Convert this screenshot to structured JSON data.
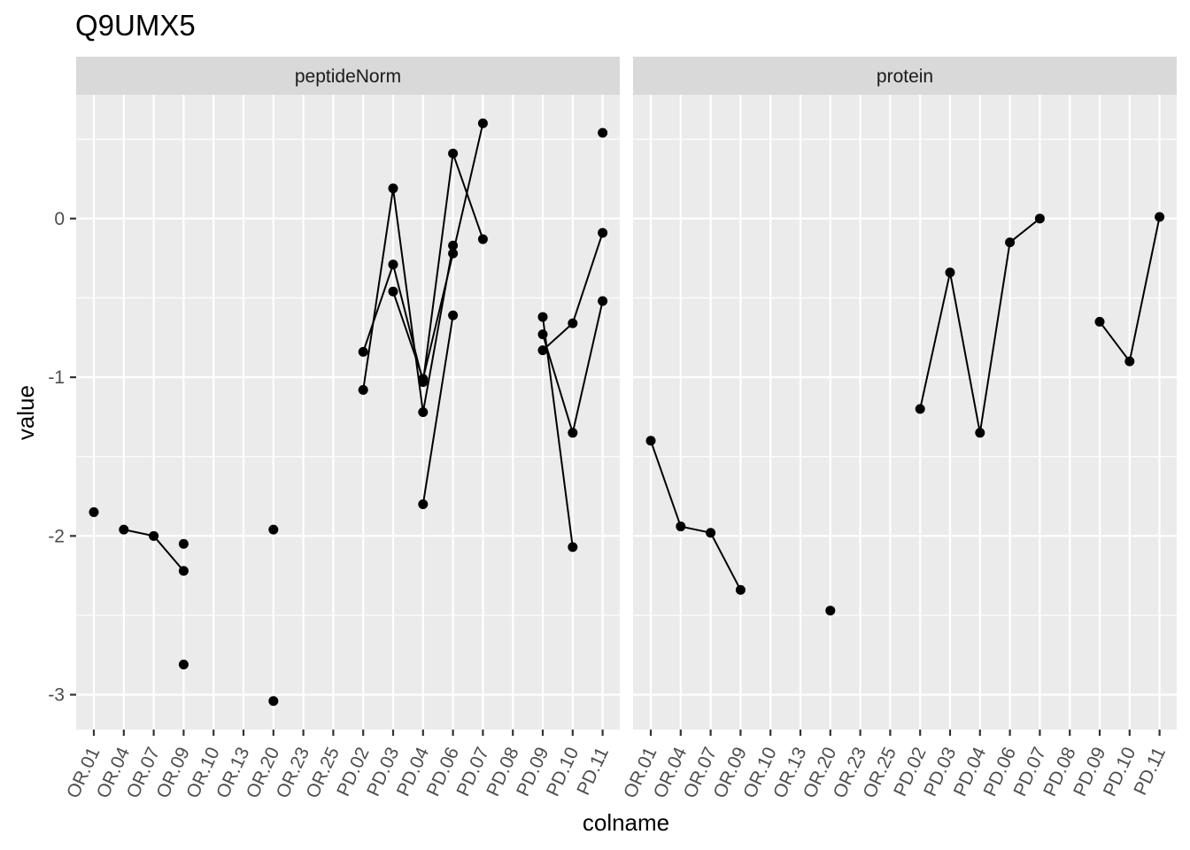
{
  "title": "Q9UMX5",
  "chart_data": {
    "type": "scatter",
    "title": "Q9UMX5",
    "xlabel": "colname",
    "ylabel": "value",
    "categories": [
      "OR.01",
      "OR.04",
      "OR.07",
      "OR.09",
      "OR.10",
      "OR.13",
      "OR.20",
      "OR.23",
      "OR.25",
      "PD.02",
      "PD.03",
      "PD.04",
      "PD.06",
      "PD.07",
      "PD.08",
      "PD.09",
      "PD.10",
      "PD.11"
    ],
    "ylim": [
      -3.22,
      0.78
    ],
    "yticks": [
      -3,
      -2,
      -1,
      0
    ],
    "ytick_labels": [
      "-3",
      "-2",
      "-1",
      "0"
    ],
    "grid": true,
    "panels": [
      {
        "strip": "peptideNorm",
        "lines": [
          [
            [
              "OR.04",
              -1.96
            ],
            [
              "OR.07",
              -2.0
            ],
            [
              "OR.09",
              -2.22
            ]
          ],
          [
            [
              "PD.02",
              -1.08
            ],
            [
              "PD.03",
              0.19
            ],
            [
              "PD.04",
              -1.22
            ],
            [
              "PD.06",
              -0.17
            ]
          ],
          [
            [
              "PD.02",
              -0.84
            ],
            [
              "PD.03",
              -0.29
            ],
            [
              "PD.04",
              -1.03
            ],
            [
              "PD.06",
              0.41
            ],
            [
              "PD.07",
              -0.13
            ]
          ],
          [
            [
              "PD.03",
              -0.46
            ],
            [
              "PD.04",
              -1.01
            ],
            [
              "PD.06",
              -0.22
            ],
            [
              "PD.07",
              0.6
            ]
          ],
          [
            [
              "PD.04",
              -1.8
            ],
            [
              "PD.06",
              -0.61
            ]
          ],
          [
            [
              "PD.09",
              -0.62
            ],
            [
              "PD.10",
              -2.07
            ]
          ],
          [
            [
              "PD.09",
              -0.73
            ],
            [
              "PD.10",
              -1.35
            ],
            [
              "PD.11",
              -0.52
            ]
          ],
          [
            [
              "PD.09",
              -0.83
            ],
            [
              "PD.10",
              -0.66
            ],
            [
              "PD.11",
              -0.09
            ]
          ]
        ],
        "points": [
          [
            "OR.01",
            -1.85
          ],
          [
            "OR.04",
            -1.96
          ],
          [
            "OR.07",
            -2.0
          ],
          [
            "OR.09",
            -2.05
          ],
          [
            "OR.09",
            -2.22
          ],
          [
            "OR.09",
            -2.81
          ],
          [
            "OR.20",
            -1.96
          ],
          [
            "OR.20",
            -3.04
          ],
          [
            "PD.02",
            -1.08
          ],
          [
            "PD.02",
            -0.84
          ],
          [
            "PD.03",
            0.19
          ],
          [
            "PD.03",
            -0.29
          ],
          [
            "PD.03",
            -0.46
          ],
          [
            "PD.04",
            -1.22
          ],
          [
            "PD.04",
            -1.03
          ],
          [
            "PD.04",
            -1.01
          ],
          [
            "PD.04",
            -1.8
          ],
          [
            "PD.06",
            0.41
          ],
          [
            "PD.06",
            -0.17
          ],
          [
            "PD.06",
            -0.22
          ],
          [
            "PD.06",
            -0.61
          ],
          [
            "PD.07",
            0.6
          ],
          [
            "PD.07",
            -0.13
          ],
          [
            "PD.09",
            -0.62
          ],
          [
            "PD.09",
            -0.73
          ],
          [
            "PD.09",
            -0.83
          ],
          [
            "PD.10",
            -0.66
          ],
          [
            "PD.10",
            -1.35
          ],
          [
            "PD.10",
            -2.07
          ],
          [
            "PD.11",
            0.54
          ],
          [
            "PD.11",
            -0.09
          ],
          [
            "PD.11",
            -0.52
          ]
        ]
      },
      {
        "strip": "protein",
        "lines": [
          [
            [
              "OR.01",
              -1.4
            ],
            [
              "OR.04",
              -1.94
            ],
            [
              "OR.07",
              -1.98
            ],
            [
              "OR.09",
              -2.34
            ]
          ],
          [
            [
              "PD.02",
              -1.2
            ],
            [
              "PD.03",
              -0.34
            ],
            [
              "PD.04",
              -1.35
            ],
            [
              "PD.06",
              -0.15
            ],
            [
              "PD.07",
              0.0
            ]
          ],
          [
            [
              "PD.09",
              -0.65
            ],
            [
              "PD.10",
              -0.9
            ],
            [
              "PD.11",
              0.01
            ]
          ]
        ],
        "points": [
          [
            "OR.01",
            -1.4
          ],
          [
            "OR.04",
            -1.94
          ],
          [
            "OR.07",
            -1.98
          ],
          [
            "OR.09",
            -2.34
          ],
          [
            "OR.20",
            -2.47
          ],
          [
            "PD.02",
            -1.2
          ],
          [
            "PD.03",
            -0.34
          ],
          [
            "PD.04",
            -1.35
          ],
          [
            "PD.06",
            -0.15
          ],
          [
            "PD.07",
            0.0
          ],
          [
            "PD.09",
            -0.65
          ],
          [
            "PD.10",
            -0.9
          ],
          [
            "PD.11",
            0.01
          ]
        ]
      }
    ],
    "colors": {
      "panel_bg": "#ebebeb",
      "strip_bg": "#d9d9d9",
      "grid": "#ffffff",
      "mark": "#000000",
      "text": "#4d4d4d",
      "title": "#000000"
    }
  }
}
